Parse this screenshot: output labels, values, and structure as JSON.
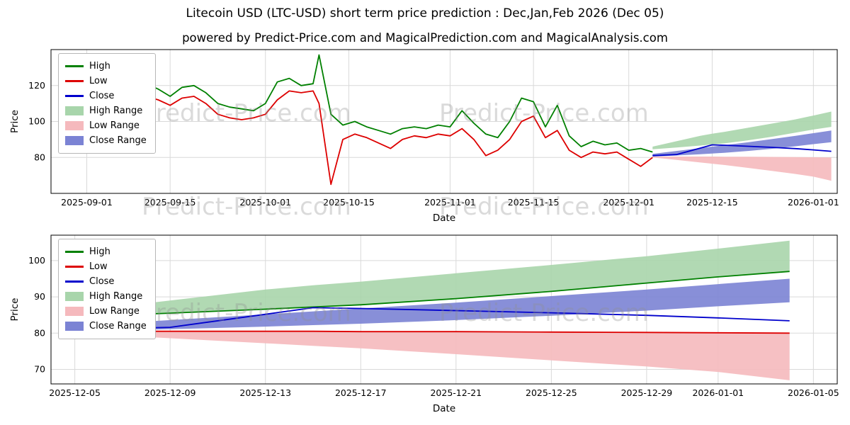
{
  "page": {
    "title": "Litecoin USD (LTC-USD) short term price prediction : Dec,Jan,Feb 2026 (Dec 05)",
    "subtitle": "powered by Predict-Price.com and MagicalPrediction.com and MagicalAnalysis.com"
  },
  "watermark": "Predict-Price.com",
  "colors": {
    "high": "#008000",
    "low": "#dd0000",
    "close": "#0000cc",
    "high_range": "#a8d5ab",
    "low_range": "#f5b9bd",
    "close_range": "#7b83d4",
    "grid": "#d9d9d9",
    "frame": "#000000"
  },
  "legend": {
    "entries": [
      {
        "label": "High",
        "type": "line",
        "color_key": "high"
      },
      {
        "label": "Low",
        "type": "line",
        "color_key": "low"
      },
      {
        "label": "Close",
        "type": "line",
        "color_key": "close"
      },
      {
        "label": "High Range",
        "type": "patch",
        "color_key": "high_range"
      },
      {
        "label": "Low Range",
        "type": "patch",
        "color_key": "low_range"
      },
      {
        "label": "Close Range",
        "type": "patch",
        "color_key": "close_range"
      }
    ]
  },
  "chart_data": [
    {
      "type": "line",
      "name": "history-and-forecast",
      "xlabel": "Date",
      "ylabel": "Price",
      "ylim": [
        60,
        140
      ],
      "yticks": [
        80,
        100,
        120
      ],
      "xlim": [
        "2025-08-26",
        "2026-01-05"
      ],
      "xticks": [
        {
          "date": "2025-09-01",
          "label": "2025-09-01"
        },
        {
          "date": "2025-09-15",
          "label": "2025-09-15"
        },
        {
          "date": "2025-10-01",
          "label": "2025-10-01"
        },
        {
          "date": "2025-10-15",
          "label": "2025-10-15"
        },
        {
          "date": "2025-11-01",
          "label": "2025-11-01"
        },
        {
          "date": "2025-11-15",
          "label": "2025-11-15"
        },
        {
          "date": "2025-12-01",
          "label": "2025-12-01"
        },
        {
          "date": "2025-12-15",
          "label": "2025-12-15"
        },
        {
          "date": "2026-01-01",
          "label": "2026-01-01"
        }
      ],
      "series": [
        {
          "name": "High",
          "color_key": "high",
          "x": [
            "2025-08-28",
            "2025-08-30",
            "2025-09-01",
            "2025-09-03",
            "2025-09-05",
            "2025-09-07",
            "2025-09-09",
            "2025-09-11",
            "2025-09-13",
            "2025-09-15",
            "2025-09-17",
            "2025-09-19",
            "2025-09-21",
            "2025-09-23",
            "2025-09-25",
            "2025-09-27",
            "2025-09-29",
            "2025-10-01",
            "2025-10-03",
            "2025-10-05",
            "2025-10-07",
            "2025-10-09",
            "2025-10-10",
            "2025-10-12",
            "2025-10-14",
            "2025-10-16",
            "2025-10-18",
            "2025-10-20",
            "2025-10-22",
            "2025-10-24",
            "2025-10-26",
            "2025-10-28",
            "2025-10-30",
            "2025-11-01",
            "2025-11-03",
            "2025-11-05",
            "2025-11-07",
            "2025-11-09",
            "2025-11-11",
            "2025-11-13",
            "2025-11-15",
            "2025-11-17",
            "2025-11-19",
            "2025-11-21",
            "2025-11-23",
            "2025-11-25",
            "2025-11-27",
            "2025-11-29",
            "2025-12-01",
            "2025-12-03",
            "2025-12-05"
          ],
          "y": [
            114,
            117,
            115,
            113,
            116,
            118,
            115,
            121,
            118,
            114,
            119,
            120,
            116,
            110,
            108,
            107,
            106,
            110,
            122,
            124,
            120,
            121,
            137,
            104,
            98,
            100,
            97,
            95,
            93,
            96,
            97,
            96,
            98,
            97,
            106,
            99,
            93,
            91,
            100,
            113,
            111,
            97,
            109,
            92,
            86,
            89,
            87,
            88,
            84,
            85,
            83
          ]
        },
        {
          "name": "Low",
          "color_key": "low",
          "x": [
            "2025-08-28",
            "2025-08-30",
            "2025-09-01",
            "2025-09-03",
            "2025-09-05",
            "2025-09-07",
            "2025-09-09",
            "2025-09-11",
            "2025-09-13",
            "2025-09-15",
            "2025-09-17",
            "2025-09-19",
            "2025-09-21",
            "2025-09-23",
            "2025-09-25",
            "2025-09-27",
            "2025-09-29",
            "2025-10-01",
            "2025-10-03",
            "2025-10-05",
            "2025-10-07",
            "2025-10-09",
            "2025-10-10",
            "2025-10-12",
            "2025-10-14",
            "2025-10-16",
            "2025-10-18",
            "2025-10-20",
            "2025-10-22",
            "2025-10-24",
            "2025-10-26",
            "2025-10-28",
            "2025-10-30",
            "2025-11-01",
            "2025-11-03",
            "2025-11-05",
            "2025-11-07",
            "2025-11-09",
            "2025-11-11",
            "2025-11-13",
            "2025-11-15",
            "2025-11-17",
            "2025-11-19",
            "2025-11-21",
            "2025-11-23",
            "2025-11-25",
            "2025-11-27",
            "2025-11-29",
            "2025-12-01",
            "2025-12-03",
            "2025-12-05"
          ],
          "y": [
            110,
            112,
            111,
            108,
            110,
            113,
            110,
            114,
            112,
            109,
            113,
            114,
            110,
            104,
            102,
            101,
            102,
            104,
            112,
            117,
            116,
            117,
            110,
            65,
            90,
            93,
            91,
            88,
            85,
            90,
            92,
            91,
            93,
            92,
            96,
            90,
            81,
            84,
            90,
            100,
            103,
            91,
            95,
            84,
            80,
            83,
            82,
            83,
            79,
            75,
            80
          ]
        },
        {
          "name": "Close",
          "color_key": "close",
          "x": [
            "2025-12-05",
            "2025-12-09",
            "2025-12-13",
            "2025-12-15",
            "2025-12-17",
            "2025-12-21",
            "2025-12-25",
            "2025-12-29",
            "2026-01-01",
            "2026-01-04"
          ],
          "y": [
            81.0,
            81.6,
            85.2,
            87.0,
            86.8,
            86.2,
            85.6,
            84.9,
            84.2,
            83.4
          ]
        }
      ],
      "bands": [
        {
          "name": "High Range",
          "color_key": "high_range",
          "x": [
            "2025-12-05",
            "2025-12-09",
            "2025-12-13",
            "2025-12-15",
            "2025-12-17",
            "2025-12-21",
            "2025-12-25",
            "2025-12-29",
            "2026-01-01",
            "2026-01-04"
          ],
          "upper": [
            86.0,
            89.0,
            92.0,
            93.2,
            94.2,
            96.5,
            98.8,
            101.2,
            103.3,
            105.5
          ],
          "lower": [
            84.5,
            85.5,
            86.6,
            87.2,
            87.8,
            89.5,
            91.5,
            93.8,
            95.5,
            97.0
          ]
        },
        {
          "name": "Low Range",
          "color_key": "low_range",
          "x": [
            "2025-12-05",
            "2025-12-09",
            "2025-12-13",
            "2025-12-15",
            "2025-12-17",
            "2025-12-21",
            "2025-12-25",
            "2025-12-29",
            "2026-01-01",
            "2026-01-04"
          ],
          "upper": [
            80.5,
            80.5,
            80.5,
            80.5,
            80.4,
            80.4,
            80.3,
            80.2,
            80.1,
            80.0
          ],
          "lower": [
            80.0,
            78.6,
            77.2,
            76.5,
            75.8,
            74.2,
            72.5,
            70.8,
            69.3,
            67.0
          ]
        },
        {
          "name": "Close Range",
          "color_key": "close_range",
          "x": [
            "2025-12-05",
            "2025-12-09",
            "2025-12-13",
            "2025-12-15",
            "2025-12-17",
            "2025-12-21",
            "2025-12-25",
            "2025-12-29",
            "2026-01-01",
            "2026-01-04"
          ],
          "upper": [
            82.0,
            83.6,
            85.2,
            86.0,
            86.8,
            88.4,
            90.2,
            92.0,
            93.5,
            95.0
          ],
          "lower": [
            80.5,
            81.1,
            81.8,
            82.2,
            82.6,
            83.6,
            84.8,
            86.2,
            87.4,
            88.5
          ]
        }
      ]
    },
    {
      "type": "line",
      "name": "forecast-detail",
      "xlabel": "Date",
      "ylabel": "Price",
      "ylim": [
        66,
        107
      ],
      "yticks": [
        70,
        80,
        90,
        100
      ],
      "xlim": [
        "2025-12-04",
        "2026-01-06"
      ],
      "xticks": [
        {
          "date": "2025-12-05",
          "label": "2025-12-05"
        },
        {
          "date": "2025-12-09",
          "label": "2025-12-09"
        },
        {
          "date": "2025-12-13",
          "label": "2025-12-13"
        },
        {
          "date": "2025-12-17",
          "label": "2025-12-17"
        },
        {
          "date": "2025-12-21",
          "label": "2025-12-21"
        },
        {
          "date": "2025-12-25",
          "label": "2025-12-25"
        },
        {
          "date": "2025-12-29",
          "label": "2025-12-29"
        },
        {
          "date": "2026-01-01",
          "label": "2026-01-01"
        },
        {
          "date": "2026-01-05",
          "label": "2026-01-05"
        }
      ],
      "series": [
        {
          "name": "High",
          "color_key": "high",
          "x": [
            "2025-12-05",
            "2025-12-09",
            "2025-12-13",
            "2025-12-15",
            "2025-12-17",
            "2025-12-21",
            "2025-12-25",
            "2025-12-29",
            "2026-01-01",
            "2026-01-04"
          ],
          "y": [
            84.5,
            85.5,
            86.6,
            87.2,
            87.8,
            89.5,
            91.5,
            93.8,
            95.5,
            97.0
          ]
        },
        {
          "name": "Low",
          "color_key": "low",
          "x": [
            "2025-12-05",
            "2025-12-09",
            "2025-12-13",
            "2025-12-15",
            "2025-12-17",
            "2025-12-21",
            "2025-12-25",
            "2025-12-29",
            "2026-01-01",
            "2026-01-04"
          ],
          "y": [
            80.5,
            80.5,
            80.5,
            80.5,
            80.4,
            80.4,
            80.3,
            80.2,
            80.1,
            80.0
          ]
        },
        {
          "name": "Close",
          "color_key": "close",
          "x": [
            "2025-12-05",
            "2025-12-09",
            "2025-12-13",
            "2025-12-15",
            "2025-12-17",
            "2025-12-21",
            "2025-12-25",
            "2025-12-29",
            "2026-01-01",
            "2026-01-04"
          ],
          "y": [
            81.0,
            81.6,
            85.2,
            87.0,
            86.8,
            86.2,
            85.6,
            84.9,
            84.2,
            83.4
          ]
        }
      ],
      "bands": [
        {
          "name": "High Range",
          "color_key": "high_range",
          "x": [
            "2025-12-05",
            "2025-12-09",
            "2025-12-13",
            "2025-12-15",
            "2025-12-17",
            "2025-12-21",
            "2025-12-25",
            "2025-12-29",
            "2026-01-01",
            "2026-01-04"
          ],
          "upper": [
            86.0,
            89.0,
            92.0,
            93.2,
            94.2,
            96.5,
            98.8,
            101.2,
            103.3,
            105.5
          ],
          "lower": [
            84.5,
            85.5,
            86.6,
            87.2,
            87.8,
            89.5,
            91.5,
            93.8,
            95.5,
            97.0
          ]
        },
        {
          "name": "Low Range",
          "color_key": "low_range",
          "x": [
            "2025-12-05",
            "2025-12-09",
            "2025-12-13",
            "2025-12-15",
            "2025-12-17",
            "2025-12-21",
            "2025-12-25",
            "2025-12-29",
            "2026-01-01",
            "2026-01-04"
          ],
          "upper": [
            80.5,
            80.5,
            80.5,
            80.5,
            80.4,
            80.4,
            80.3,
            80.2,
            80.1,
            80.0
          ],
          "lower": [
            80.0,
            78.6,
            77.2,
            76.5,
            75.8,
            74.2,
            72.5,
            70.8,
            69.3,
            67.0
          ]
        },
        {
          "name": "Close Range",
          "color_key": "close_range",
          "x": [
            "2025-12-05",
            "2025-12-09",
            "2025-12-13",
            "2025-12-15",
            "2025-12-17",
            "2025-12-21",
            "2025-12-25",
            "2025-12-29",
            "2026-01-01",
            "2026-01-04"
          ],
          "upper": [
            82.0,
            83.6,
            85.2,
            86.0,
            86.8,
            88.4,
            90.2,
            92.0,
            93.5,
            95.0
          ],
          "lower": [
            80.5,
            81.1,
            81.8,
            82.2,
            82.6,
            83.6,
            84.8,
            86.2,
            87.4,
            88.5
          ]
        }
      ]
    }
  ]
}
